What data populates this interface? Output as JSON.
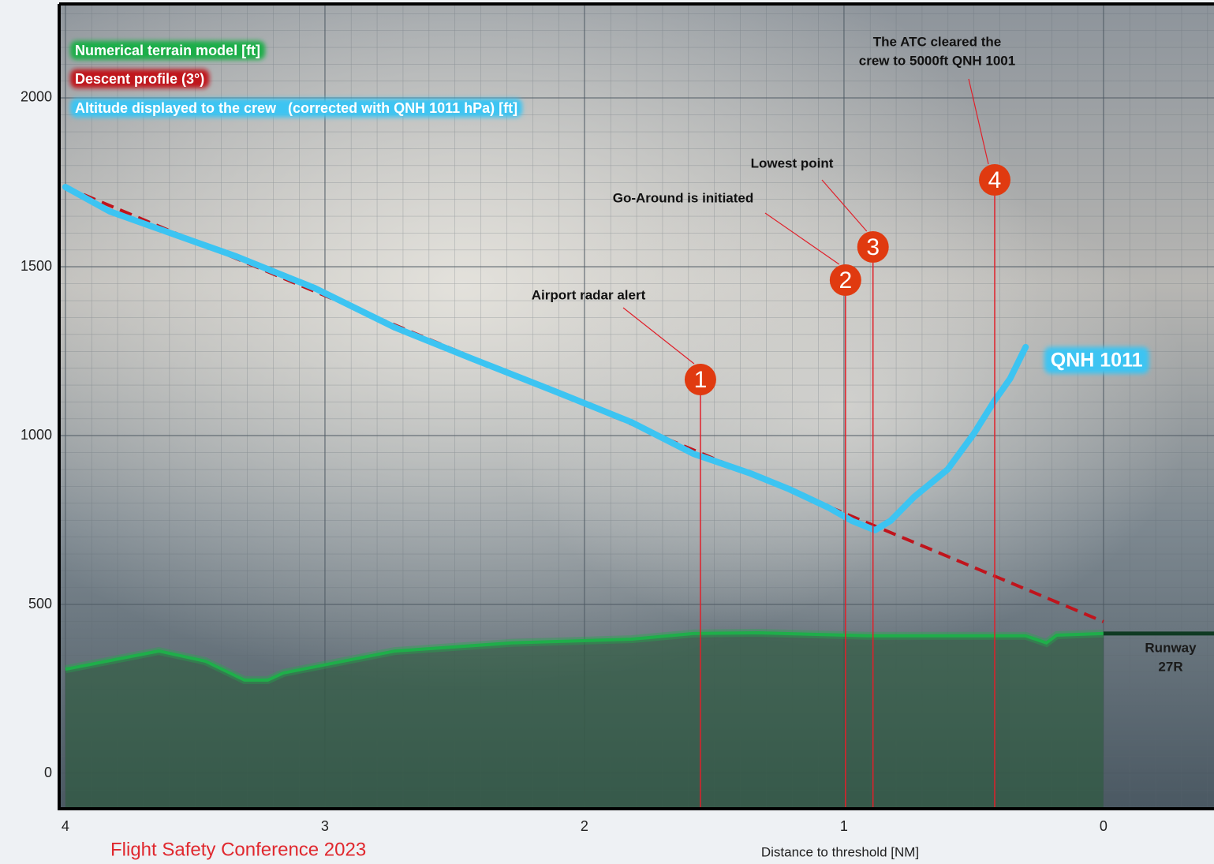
{
  "chart_data": {
    "type": "line",
    "x_label": "Distance to threshold [NM]",
    "xlim": [
      4.024,
      -0.426
    ],
    "xticks": [
      4,
      3,
      2,
      1,
      0
    ],
    "ylim": [
      -105,
      2278
    ],
    "yticks": [
      0,
      500,
      1000,
      1500,
      2000
    ],
    "grid": true,
    "series": [
      {
        "name": "Numerical terrain model [ft]",
        "color": "#1fae4a",
        "area": true,
        "x": [
          4,
          3.64,
          3.46,
          3.31,
          3.22,
          3.16,
          2.73,
          2.28,
          1.82,
          1.58,
          1.33,
          0.91,
          0.3,
          0.22,
          0.18,
          0
        ],
        "values": [
          308,
          362,
          332,
          276,
          276,
          297,
          362,
          386,
          397,
          414,
          416,
          407,
          407,
          386,
          409,
          414
        ]
      },
      {
        "name": "Descent profile (3°)",
        "color": "#c0141c",
        "dashed": true,
        "x": [
          4,
          0
        ],
        "values": [
          1736,
          449
        ]
      },
      {
        "name": "Altitude displayed to the crew   (corrected with QNH 1011 hPa) [ft]",
        "color": "#3cc4f2",
        "end_label": "QNH 1011",
        "x": [
          4,
          3.83,
          3.64,
          3.34,
          3.04,
          2.73,
          2.43,
          2.12,
          1.82,
          1.58,
          1.36,
          1.21,
          1.06,
          0.97,
          0.88,
          0.82,
          0.73,
          0.6,
          0.5,
          0.42,
          0.36,
          0.3
        ],
        "values": [
          1736,
          1664,
          1612,
          1530,
          1437,
          1320,
          1227,
          1133,
          1040,
          946,
          888,
          841,
          787,
          748,
          720,
          748,
          818,
          900,
          1005,
          1103,
          1168,
          1262
        ]
      }
    ],
    "events": [
      {
        "x": 1.553,
        "label": "1",
        "text": [
          "Airport radar alert"
        ]
      },
      {
        "x": 0.994,
        "label": "2",
        "text": [
          "Go-Around is initiated"
        ]
      },
      {
        "x": 0.888,
        "label": "3",
        "text": [
          "Lowest point"
        ]
      },
      {
        "x": 0.419,
        "label": "4",
        "text": [
          "The ATC cleared the",
          "crew to 5000ft QNH 1001"
        ]
      }
    ],
    "runway": {
      "x": 0,
      "value": 414,
      "label": [
        "Runway",
        "27R"
      ]
    },
    "footer": "Flight Safety Conference 2023"
  }
}
